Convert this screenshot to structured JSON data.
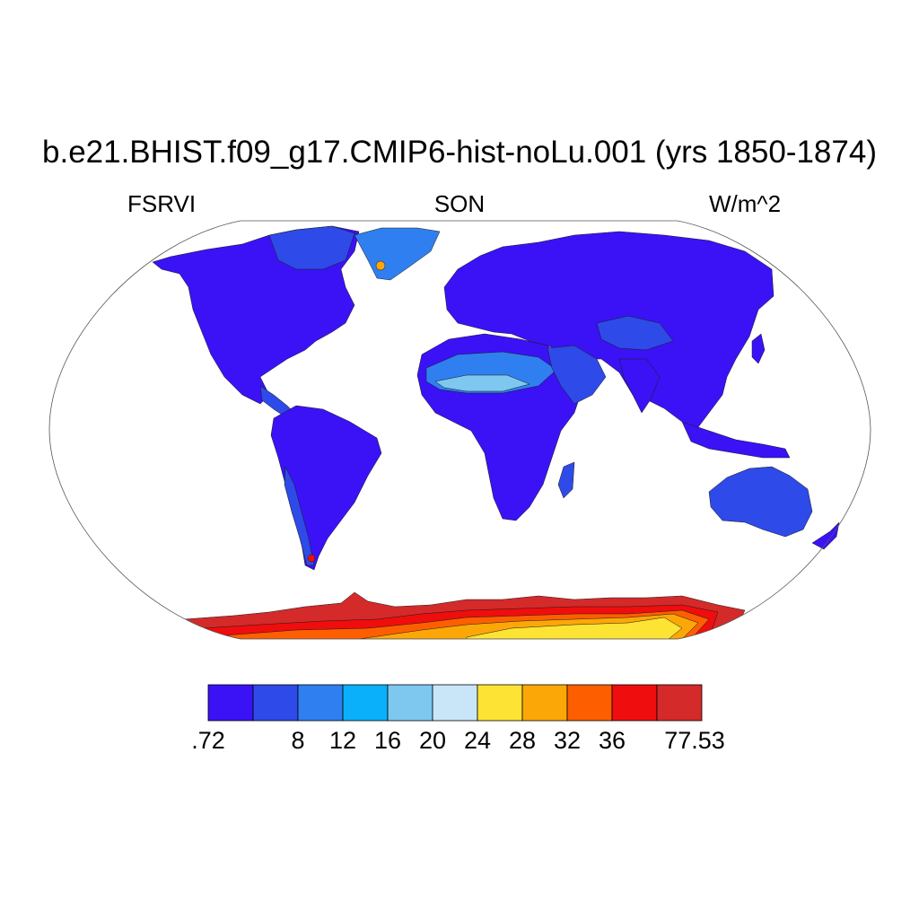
{
  "title": "b.e21.BHIST.f09_g17.CMIP6-hist-noLu.001 (yrs 1850-1874)",
  "left_label": "FSRVI",
  "center_label": "SON",
  "right_label": "W/m^2",
  "colorbar": {
    "colors": [
      "#3a12f5",
      "#2e4ae8",
      "#2f7ff0",
      "#0ab0fa",
      "#7ec8f0",
      "#c8e6f8",
      "#fde434",
      "#fca708",
      "#fd5f00",
      "#f00d0d",
      "#d42a2a"
    ],
    "labels": [
      ".72",
      "8",
      "12",
      "16",
      "20",
      "24",
      "28",
      "32",
      "36",
      "77.53"
    ]
  },
  "map": {
    "projection": "Robinson",
    "colors": {
      "land_low": "#3a12f5",
      "land_mid": "#2e4ae8",
      "land_light": "#2f7ff0",
      "desert": "#7ec8f0",
      "ice_edge": "#d42a2a",
      "ice_mid": "#f00d0d",
      "ice_inner": "#fd5f00",
      "ice_core": "#fca708",
      "ice_peak": "#fde434"
    }
  }
}
